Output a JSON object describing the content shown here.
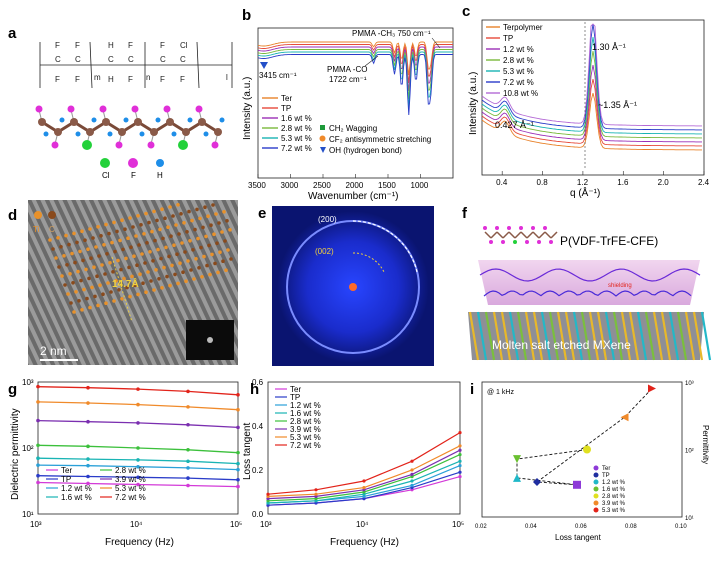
{
  "panels": {
    "a": {
      "label": "a",
      "atoms": [
        "Cl",
        "F",
        "H"
      ],
      "formula_subscripts": [
        "m",
        "n",
        "l"
      ]
    },
    "b": {
      "label": "b",
      "chart_data": {
        "type": "line",
        "xlabel": "Wavenumber (cm⁻¹)",
        "ylabel": "Intensity (a.u.)",
        "xlim": [
          3500,
          500
        ],
        "xticks": [
          3500,
          3000,
          2500,
          2000,
          1500,
          1000
        ],
        "series": [
          {
            "name": "Ter",
            "color": "#e8822a"
          },
          {
            "name": "TP",
            "color": "#e64a3a"
          },
          {
            "name": "1.6 wt %",
            "color": "#9b2fb7"
          },
          {
            "name": "2.8 wt %",
            "color": "#7ab83c"
          },
          {
            "name": "5.3 wt %",
            "color": "#19b4b4"
          },
          {
            "name": "7.2 wt %",
            "color": "#2a3cc9"
          }
        ],
        "annotations": [
          "PMMA -CH₃ 750 cm⁻¹",
          "PMMA -CO",
          "1722 cm⁻¹",
          "3415 cm⁻¹"
        ],
        "markers": [
          {
            "symbol": "square",
            "color": "#1d9a3a",
            "label": "CH₂ Wagging"
          },
          {
            "symbol": "circle",
            "color": "#f08a2a",
            "label": "CF₂ antisymmetric stretching"
          },
          {
            "symbol": "triangle",
            "color": "#2450c8",
            "label": "OH (hydrogen bond)"
          }
        ]
      }
    },
    "c": {
      "label": "c",
      "chart_data": {
        "type": "line",
        "xlabel": "q (Å⁻¹)",
        "ylabel": "Intensity (a.u.)",
        "xlim": [
          0.2,
          2.4
        ],
        "xticks": [
          0.4,
          0.8,
          1.2,
          1.6,
          2.0,
          2.4
        ],
        "series": [
          {
            "name": "Terpolymer",
            "color": "#e8822a"
          },
          {
            "name": "TP",
            "color": "#e64a3a"
          },
          {
            "name": "1.2 wt %",
            "color": "#9b2fb7"
          },
          {
            "name": "2.8 wt %",
            "color": "#7ab83c"
          },
          {
            "name": "5.3 wt %",
            "color": "#19b4b4"
          },
          {
            "name": "7.2 wt %",
            "color": "#2a3cc9"
          },
          {
            "name": "10.8 wt %",
            "color": "#b46ad6"
          }
        ],
        "annotations": [
          "1.30 Å⁻¹",
          "~1.35 Å⁻¹",
          "0.427 Å⁻¹"
        ]
      }
    },
    "d": {
      "label": "d",
      "legend": [
        "Ti",
        "C"
      ],
      "distance": "14.7Å",
      "scale": "2  nm"
    },
    "e": {
      "label": "e",
      "planes": [
        "(200)",
        "(002)"
      ]
    },
    "f": {
      "label": "f",
      "title": "P(VDF-TrFE-CFE)",
      "note": "shielding",
      "base": "Molten salt etched MXene"
    },
    "g": {
      "label": "g",
      "chart_data": {
        "type": "line",
        "xlabel": "Frequency (Hz)",
        "ylabel": "Dielectric permittivity",
        "x_log": true,
        "y_log": true,
        "xlim": [
          1000,
          100000
        ],
        "ylim": [
          10,
          1000
        ],
        "xticks": [
          "10³",
          "10⁴",
          "10⁵"
        ],
        "yticks": [
          "10¹",
          "10²",
          "10³"
        ],
        "series": [
          {
            "name": "Ter",
            "color": "#d33ad8",
            "y": [
              30,
              29,
              28,
              27,
              26
            ]
          },
          {
            "name": "TP",
            "color": "#2a3cc9",
            "y": [
              38,
              37,
              36,
              35,
              33
            ]
          },
          {
            "name": "1.2 wt %",
            "color": "#2aa0d8",
            "y": [
              55,
              54,
              52,
              50,
              47
            ]
          },
          {
            "name": "1.6 wt %",
            "color": "#19b4b4",
            "y": [
              70,
              68,
              66,
              63,
              58
            ]
          },
          {
            "name": "2.8 wt %",
            "color": "#3cc03c",
            "y": [
              110,
              106,
              100,
              94,
              85
            ]
          },
          {
            "name": "3.9 wt %",
            "color": "#7b2fb0",
            "y": [
              260,
              250,
              240,
              225,
              205
            ]
          },
          {
            "name": "5.3 wt %",
            "color": "#f08a2a",
            "y": [
              500,
              480,
              455,
              420,
              380
            ]
          },
          {
            "name": "7.2 wt %",
            "color": "#e2231a",
            "y": [
              850,
              820,
              780,
              720,
              640
            ]
          }
        ],
        "x": [
          1000,
          3162,
          10000,
          31623,
          100000
        ],
        "legend": [
          "Ter",
          "TP",
          "1.2 wt %",
          "1.6 wt %",
          "2.8 wt %",
          "3.9 wt %",
          "5.3 wt %",
          "7.2 wt %"
        ]
      }
    },
    "h": {
      "label": "h",
      "chart_data": {
        "type": "line",
        "xlabel": "Frequency (Hz)",
        "ylabel": "Loss tangent",
        "x_log": true,
        "xlim": [
          1000,
          100000
        ],
        "ylim": [
          0,
          0.6
        ],
        "xticks": [
          "10³",
          "10⁴",
          "10⁵"
        ],
        "yticks": [
          "0.0",
          "0.2",
          "0.4",
          "0.6"
        ],
        "series": [
          {
            "name": "Ter",
            "color": "#d33ad8",
            "y": [
              0.04,
              0.05,
              0.07,
              0.11,
              0.17
            ]
          },
          {
            "name": "TP",
            "color": "#2a3cc9",
            "y": [
              0.04,
              0.05,
              0.07,
              0.12,
              0.19
            ]
          },
          {
            "name": "1.2 wt %",
            "color": "#2aa0d8",
            "y": [
              0.05,
              0.06,
              0.08,
              0.13,
              0.22
            ]
          },
          {
            "name": "1.6 wt %",
            "color": "#19b4b4",
            "y": [
              0.05,
              0.06,
              0.09,
              0.15,
              0.24
            ]
          },
          {
            "name": "2.8 wt %",
            "color": "#3cc03c",
            "y": [
              0.06,
              0.07,
              0.1,
              0.17,
              0.27
            ]
          },
          {
            "name": "3.9 wt %",
            "color": "#7b2fb0",
            "y": [
              0.07,
              0.08,
              0.11,
              0.18,
              0.29
            ]
          },
          {
            "name": "5.3 wt %",
            "color": "#f08a2a",
            "y": [
              0.08,
              0.09,
              0.12,
              0.2,
              0.31
            ]
          },
          {
            "name": "7.2 wt %",
            "color": "#e2231a",
            "y": [
              0.09,
              0.11,
              0.15,
              0.24,
              0.37
            ]
          }
        ],
        "x": [
          1000,
          3162,
          10000,
          31623,
          100000
        ],
        "legend": [
          "Ter",
          "TP",
          "1.2 wt %",
          "1.6 wt %",
          "2.8 wt %",
          "3.9 wt %",
          "5.3 wt %",
          "7.2 wt %"
        ]
      }
    },
    "i": {
      "label": "i",
      "chart_data": {
        "type": "scatter",
        "note": "@ 1 kHz",
        "xlabel": "Loss tangent",
        "ylabel": "Permittivity",
        "y_log": true,
        "xlim": [
          0.02,
          0.1
        ],
        "ylim": [
          10,
          1000
        ],
        "xticks": [
          "0.02",
          "0.04",
          "0.06",
          "0.08",
          "0.10"
        ],
        "yticks": [
          "10¹",
          "10²",
          "10³"
        ],
        "series": [
          {
            "name": "Ter",
            "color": "#8e3ad8",
            "symbol": "square",
            "points": [
              [
                0.058,
                30
              ]
            ]
          },
          {
            "name": "TP",
            "color": "#1f2ea0",
            "symbol": "diamond",
            "points": [
              [
                0.042,
                33
              ]
            ]
          },
          {
            "name": "1.2 wt %",
            "color": "#1fb8c8",
            "symbol": "triangle-up",
            "points": [
              [
                0.034,
                38
              ]
            ]
          },
          {
            "name": "1.6 wt %",
            "color": "#6ac030",
            "symbol": "triangle-down",
            "points": [
              [
                0.034,
                72
              ]
            ]
          },
          {
            "name": "2.8 wt %",
            "color": "#e0e020",
            "symbol": "circle",
            "points": [
              [
                0.062,
                100
              ]
            ]
          },
          {
            "name": "3.9 wt %",
            "color": "#f08a2a",
            "symbol": "triangle-left",
            "points": [
              [
                0.077,
                300
              ]
            ]
          },
          {
            "name": "5.3 wt %",
            "color": "#e2231a",
            "symbol": "triangle-right",
            "points": [
              [
                0.088,
                800
              ]
            ]
          }
        ]
      }
    }
  }
}
